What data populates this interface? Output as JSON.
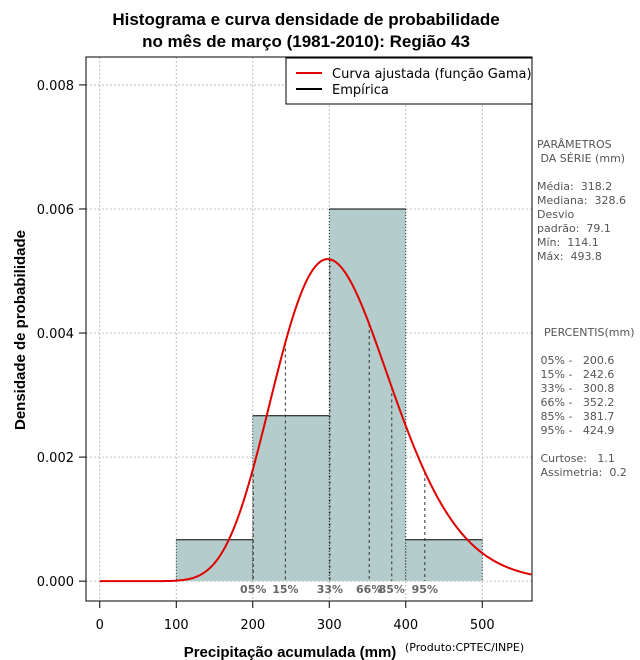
{
  "chart_data": {
    "type": "bar",
    "title_line1": "Histograma e curva densidade de probabilidade",
    "title_line2": "no mês de março (1981-2010): Região 43",
    "xlabel": "Precipitação acumulada (mm)",
    "ylabel": "Densidade de probabilidade",
    "credit": "(Produto:CPTEC/INPE)",
    "xlim": [
      -18,
      565
    ],
    "ylim": [
      -0.00032,
      0.00845
    ],
    "xticks": [
      0,
      100,
      200,
      300,
      400,
      500
    ],
    "xtick_labels": [
      "0",
      "100",
      "200",
      "300",
      "400",
      "500"
    ],
    "yticks": [
      0.0,
      0.002,
      0.004,
      0.006,
      0.008
    ],
    "ytick_labels": [
      "0.000",
      "0.002",
      "0.004",
      "0.006",
      "0.008"
    ],
    "grid": true,
    "bins": [
      {
        "x0": 100,
        "x1": 200,
        "density": 0.000667
      },
      {
        "x0": 200,
        "x1": 300,
        "density": 0.002667
      },
      {
        "x0": 300,
        "x1": 400,
        "density": 0.006
      },
      {
        "x0": 400,
        "x1": 500,
        "density": 0.000667
      }
    ],
    "series": [
      {
        "name": "Curva ajustada (função Gama)",
        "color": "#e00000",
        "gamma_shape": 16.2,
        "gamma_scale": 19.6,
        "x_from": 0,
        "x_to": 565
      },
      {
        "name": "Empírica",
        "color": "#000000"
      }
    ],
    "legend_position": "top-right",
    "percentiles": [
      {
        "label": "05%",
        "value": 200.6
      },
      {
        "label": "15%",
        "value": 242.6
      },
      {
        "label": "33%",
        "value": 300.8
      },
      {
        "label": "66%",
        "value": 352.2
      },
      {
        "label": "85%",
        "value": 381.7
      },
      {
        "label": "95%",
        "value": 424.9
      }
    ],
    "bar_color": "#b4cccc"
  },
  "params": {
    "heading1": "PARÂMETROS",
    "heading2": " DA SÉRIE (mm)",
    "media": "Média:  318.2",
    "mediana": "Mediana:  328.6",
    "desvio1": "Desvio",
    "desvio2": "padrão:  79.1",
    "min": "Mín:  114.1",
    "max": "Máx:  493.8"
  },
  "percentis_panel": {
    "heading": "PERCENTIS(mm)",
    "p05": " 05% -   200.6",
    "p15": " 15% -   242.6",
    "p33": " 33% -   300.8",
    "p66": " 66% -   352.2",
    "p85": " 85% -   381.7",
    "p95": " 95% -   424.9",
    "curtose": " Curtose:   1.1",
    "assimetria": " Assimetria:  0.2"
  }
}
